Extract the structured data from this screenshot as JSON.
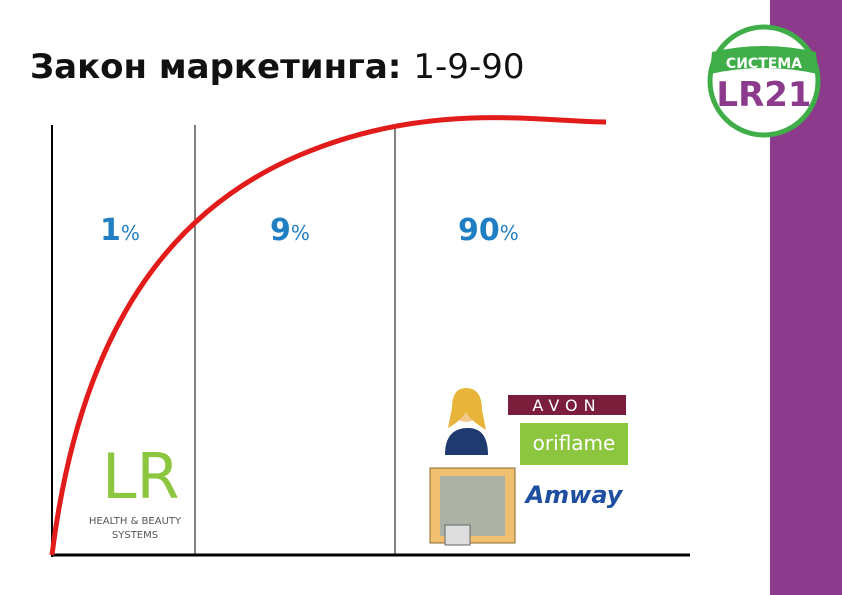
{
  "title": {
    "bold": "Закон маркетинга:",
    "rest": "1-9-90"
  },
  "segments": [
    {
      "number": "1",
      "unit": "%"
    },
    {
      "number": "9",
      "unit": "%"
    },
    {
      "number": "90",
      "unit": "%"
    }
  ],
  "badge": {
    "top": "СИСТЕМА",
    "bottom": "LR21"
  },
  "lr_logo": {
    "mark": "LR",
    "line1": "HEALTH & BEAUTY",
    "line2": "SYSTEMS"
  },
  "brands": [
    "AVON",
    "oriflame",
    "Amway"
  ]
}
